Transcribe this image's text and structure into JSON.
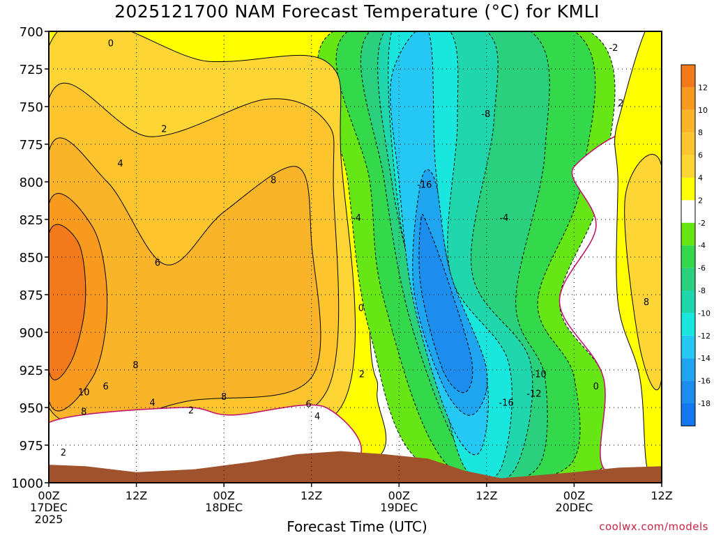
{
  "chart_data": {
    "type": "contour",
    "title": "2025121700 NAM Forecast Temperature (°C) for KMLI",
    "xlabel": "Forecast Time (UTC)",
    "ylabel": "",
    "credit": "coolwx.com/models",
    "y_axis": {
      "values": [
        700,
        725,
        750,
        775,
        800,
        825,
        850,
        875,
        900,
        925,
        950,
        975,
        1000
      ],
      "labels": [
        "700",
        "725",
        "750",
        "775",
        "800",
        "825",
        "850",
        "875",
        "900",
        "925",
        "950",
        "975",
        "1000"
      ],
      "ylim": [
        1000,
        700
      ]
    },
    "x_axis": {
      "ticks": [
        {
          "hour": 0,
          "lines": [
            "00Z",
            "17DEC",
            "2025"
          ]
        },
        {
          "hour": 12,
          "lines": [
            "12Z"
          ]
        },
        {
          "hour": 24,
          "lines": [
            "00Z",
            "18DEC"
          ]
        },
        {
          "hour": 36,
          "lines": [
            "12Z"
          ]
        },
        {
          "hour": 48,
          "lines": [
            "00Z",
            "19DEC"
          ]
        },
        {
          "hour": 60,
          "lines": [
            "12Z"
          ]
        },
        {
          "hour": 72,
          "lines": [
            "00Z",
            "20DEC"
          ]
        },
        {
          "hour": 84,
          "lines": [
            "12Z"
          ]
        }
      ],
      "xlim": [
        0,
        84
      ]
    },
    "grid": true,
    "colorbar": {
      "labels": [
        "12",
        "10",
        "8",
        "6",
        "4",
        "2",
        "-2",
        "-4",
        "-6",
        "-8",
        "-10",
        "-12",
        "-14",
        "-16",
        "-18"
      ],
      "bins": [
        {
          "color": "#f27a1a"
        },
        {
          "color": "#f79a1e"
        },
        {
          "color": "#fab42a"
        },
        {
          "color": "#fcc42d"
        },
        {
          "color": "#fdd535"
        },
        {
          "color": "#ffff00"
        },
        {
          "color": "#ffffff"
        },
        {
          "color": "#66e614"
        },
        {
          "color": "#33d94a"
        },
        {
          "color": "#2ad17c"
        },
        {
          "color": "#1fd6ad"
        },
        {
          "color": "#19e6dd"
        },
        {
          "color": "#24c8f2"
        },
        {
          "color": "#1fa5f0"
        },
        {
          "color": "#1c8ced"
        },
        {
          "color": "#1477f0"
        }
      ]
    },
    "contour_labels": [
      {
        "text": "0",
        "hour": 8.5,
        "p": 708
      },
      {
        "text": "2",
        "hour": 15.8,
        "p": 765
      },
      {
        "text": "4",
        "hour": 9.8,
        "p": 788
      },
      {
        "text": "6",
        "hour": 14.9,
        "p": 854
      },
      {
        "text": "8",
        "hour": 30.8,
        "p": 799
      },
      {
        "text": "8",
        "hour": 11.9,
        "p": 922
      },
      {
        "text": "10",
        "hour": 4.8,
        "p": 940
      },
      {
        "text": "6",
        "hour": 7.8,
        "p": 936
      },
      {
        "text": "8",
        "hour": 4.8,
        "p": 953
      },
      {
        "text": "4",
        "hour": 14.2,
        "p": 947
      },
      {
        "text": "2",
        "hour": 19.5,
        "p": 952
      },
      {
        "text": "8",
        "hour": 24.0,
        "p": 943
      },
      {
        "text": "6",
        "hour": 35.6,
        "p": 948
      },
      {
        "text": "4",
        "hour": 36.8,
        "p": 956
      },
      {
        "text": "2",
        "hour": 2.0,
        "p": 980
      },
      {
        "text": "0",
        "hour": 42.8,
        "p": 884
      },
      {
        "text": "2",
        "hour": 42.9,
        "p": 928
      },
      {
        "text": "-4",
        "hour": 42.2,
        "p": 824
      },
      {
        "text": "-16",
        "hour": 51.5,
        "p": 802
      },
      {
        "text": "-8",
        "hour": 59.9,
        "p": 755
      },
      {
        "text": "-4",
        "hour": 62.4,
        "p": 824
      },
      {
        "text": "-10",
        "hour": 67.2,
        "p": 928
      },
      {
        "text": "-12",
        "hour": 66.5,
        "p": 941
      },
      {
        "text": "-16",
        "hour": 62.7,
        "p": 947
      },
      {
        "text": "0",
        "hour": 75.0,
        "p": 936
      },
      {
        "text": "2",
        "hour": 78.4,
        "p": 748
      },
      {
        "text": "-2",
        "hour": 77.4,
        "p": 711
      },
      {
        "text": "8",
        "hour": 81.9,
        "p": 880
      }
    ],
    "regions": [
      {
        "value": 1,
        "color": "#ffff00",
        "points": [
          [
            0,
            700
          ],
          [
            43,
            700
          ],
          [
            44,
            900
          ],
          [
            45,
            940
          ],
          [
            42,
            990
          ],
          [
            0,
            990
          ]
        ]
      },
      {
        "value": -3,
        "color": "#66e614",
        "points": [
          [
            39,
            700
          ],
          [
            74,
            700
          ],
          [
            76,
            800
          ],
          [
            70,
            880
          ],
          [
            76,
            930
          ],
          [
            76,
            990
          ],
          [
            52,
            990
          ],
          [
            44,
            900
          ],
          [
            41,
            800
          ]
        ]
      },
      {
        "value": -5,
        "color": "#33d94a",
        "points": [
          [
            41,
            700
          ],
          [
            72,
            700
          ],
          [
            73,
            800
          ],
          [
            67,
            880
          ],
          [
            72,
            930
          ],
          [
            71,
            990
          ],
          [
            55,
            990
          ],
          [
            46,
            880
          ],
          [
            44,
            800
          ]
        ]
      },
      {
        "value": -7,
        "color": "#2ad17c",
        "points": [
          [
            44,
            700
          ],
          [
            66,
            700
          ],
          [
            68,
            780
          ],
          [
            64,
            880
          ],
          [
            68,
            930
          ],
          [
            67,
            990
          ],
          [
            58,
            990
          ],
          [
            50,
            900
          ],
          [
            46,
            800
          ]
        ]
      },
      {
        "value": -9,
        "color": "#1fd6ad",
        "points": [
          [
            46,
            700
          ],
          [
            60,
            700
          ],
          [
            61,
            760
          ],
          [
            58,
            860
          ],
          [
            66,
            920
          ],
          [
            64,
            990
          ],
          [
            58,
            990
          ],
          [
            52,
            900
          ],
          [
            47,
            800
          ]
        ]
      },
      {
        "value": -11,
        "color": "#19e6dd",
        "points": [
          [
            47,
            700
          ],
          [
            55,
            700
          ],
          [
            56,
            760
          ],
          [
            55,
            860
          ],
          [
            63,
            920
          ],
          [
            62,
            990
          ],
          [
            57,
            990
          ],
          [
            53,
            920
          ],
          [
            48,
            820
          ]
        ]
      },
      {
        "value": -13,
        "color": "#24c8f2",
        "points": [
          [
            47,
            730
          ],
          [
            52,
            700
          ],
          [
            53,
            790
          ],
          [
            55,
            860
          ],
          [
            60,
            930
          ],
          [
            59,
            980
          ],
          [
            55,
            960
          ],
          [
            50,
            880
          ],
          [
            48,
            800
          ]
        ]
      },
      {
        "value": -15,
        "color": "#1fa5f0",
        "points": [
          [
            51,
            800
          ],
          [
            53,
            800
          ],
          [
            55,
            860
          ],
          [
            60,
            925
          ],
          [
            58,
            955
          ],
          [
            54,
            935
          ],
          [
            50,
            870
          ]
        ]
      },
      {
        "value": -17,
        "color": "#1c8ced",
        "points": [
          [
            51,
            825
          ],
          [
            52,
            830
          ],
          [
            55,
            870
          ],
          [
            58,
            920
          ],
          [
            57,
            940
          ],
          [
            54,
            925
          ],
          [
            51,
            870
          ]
        ]
      },
      {
        "value": 1,
        "color": "#ffffff",
        "points": [
          [
            72,
            790
          ],
          [
            84,
            780
          ],
          [
            84,
            990
          ],
          [
            76,
            990
          ],
          [
            76,
            930
          ],
          [
            70,
            880
          ],
          [
            75,
            830
          ]
        ]
      },
      {
        "value": 3,
        "color": "#ffff00",
        "points": [
          [
            78,
            760
          ],
          [
            84,
            700
          ],
          [
            84,
            990
          ],
          [
            82,
            990
          ],
          [
            81,
            930
          ],
          [
            78,
            880
          ],
          [
            78,
            800
          ]
        ]
      },
      {
        "value": 5,
        "color": "#fdd535",
        "points": [
          [
            0,
            710
          ],
          [
            22,
            720
          ],
          [
            38,
            720
          ],
          [
            40,
            780
          ],
          [
            40,
            950
          ],
          [
            14,
            975
          ],
          [
            0,
            990
          ]
        ]
      },
      {
        "value": 7,
        "color": "#fcc42d",
        "points": [
          [
            0,
            745
          ],
          [
            14,
            770
          ],
          [
            30,
            745
          ],
          [
            38,
            760
          ],
          [
            39,
            800
          ],
          [
            38,
            940
          ],
          [
            20,
            965
          ],
          [
            0,
            975
          ]
        ]
      },
      {
        "value": 9,
        "color": "#fab42a",
        "points": [
          [
            0,
            780
          ],
          [
            8,
            800
          ],
          [
            16,
            855
          ],
          [
            24,
            820
          ],
          [
            34,
            790
          ],
          [
            36,
            840
          ],
          [
            36,
            930
          ],
          [
            20,
            945
          ],
          [
            0,
            950
          ]
        ]
      },
      {
        "value": 11,
        "color": "#f79a1e",
        "points": [
          [
            0,
            815
          ],
          [
            6,
            830
          ],
          [
            8,
            880
          ],
          [
            6,
            930
          ],
          [
            0,
            945
          ]
        ]
      },
      {
        "value": 13,
        "color": "#f27a1a",
        "points": [
          [
            0,
            835
          ],
          [
            4,
            840
          ],
          [
            5,
            880
          ],
          [
            3,
            920
          ],
          [
            0,
            925
          ]
        ]
      },
      {
        "value": 5,
        "color": "#fdd535",
        "points": [
          [
            79,
            810
          ],
          [
            84,
            790
          ],
          [
            84,
            930
          ],
          [
            81,
            910
          ]
        ]
      },
      {
        "value": -3,
        "color": "#66e614",
        "points": [
          [
            15,
            990
          ],
          [
            20,
            970
          ],
          [
            26,
            962
          ],
          [
            27,
            990
          ]
        ]
      },
      {
        "value": 1,
        "color": "#ffffff",
        "points": [
          [
            0,
            960
          ],
          [
            18,
            950
          ],
          [
            25,
            955
          ],
          [
            38,
            950
          ],
          [
            40,
            990
          ],
          [
            0,
            990
          ]
        ]
      }
    ],
    "terrain": {
      "color": "#a0522d",
      "points": [
        [
          0,
          988
        ],
        [
          5,
          989
        ],
        [
          12,
          993
        ],
        [
          20,
          991
        ],
        [
          28,
          986
        ],
        [
          34,
          981
        ],
        [
          40,
          979
        ],
        [
          46,
          981
        ],
        [
          52,
          984
        ],
        [
          57,
          992
        ],
        [
          62,
          997
        ],
        [
          67,
          995
        ],
        [
          72,
          993
        ],
        [
          78,
          990
        ],
        [
          84,
          989
        ]
      ]
    }
  }
}
